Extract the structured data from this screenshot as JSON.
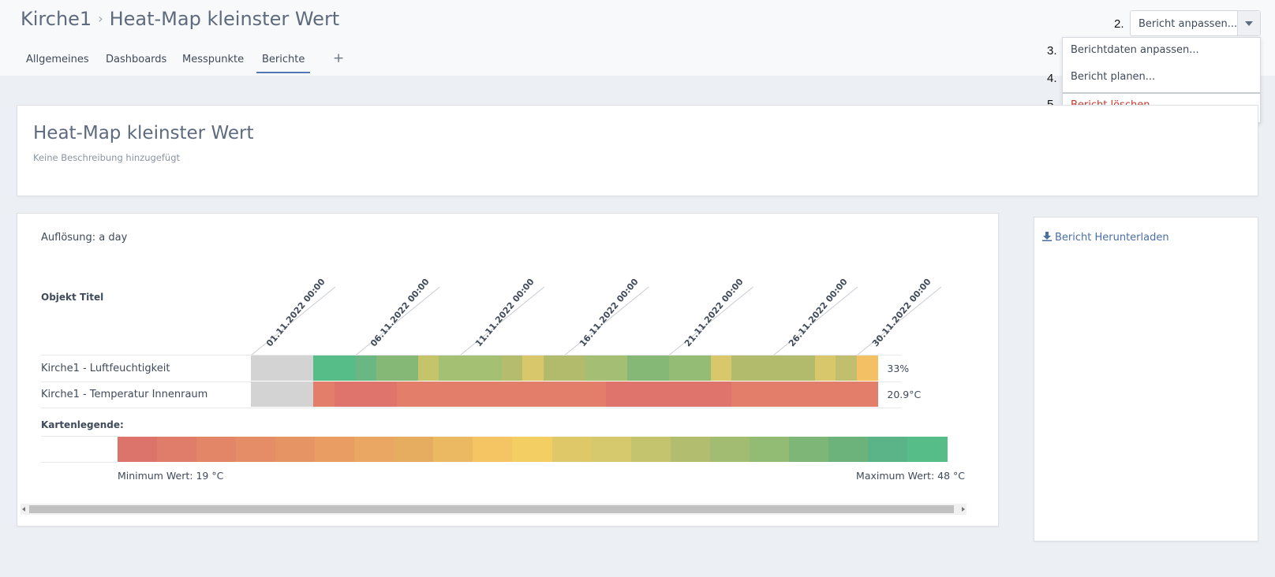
{
  "breadcrumb": {
    "parent": "Kirche1",
    "current": "Heat-Map kleinster Wert"
  },
  "tabs": [
    {
      "label": "Allgemeines"
    },
    {
      "label": "Dashboards"
    },
    {
      "label": "Messpunkte"
    },
    {
      "label": "Berichte",
      "active": true
    }
  ],
  "steps": {
    "s2": "2.",
    "s3": "3.",
    "s4": "4.",
    "s5": "5."
  },
  "report_menu": {
    "button_label": "Bericht anpassen...",
    "items": [
      "Berichtdaten anpassen...",
      "Bericht planen...",
      "Bericht löschen..."
    ]
  },
  "report": {
    "title": "Heat-Map kleinster Wert",
    "description": "Keine Beschreibung hinzugefügt"
  },
  "heatmap": {
    "resolution": "Auflösung: a day",
    "object_title_header": "Objekt Titel",
    "date_labels": [
      "01.11.2022 00:00",
      "06.11.2022 00:00",
      "11.11.2022 00:00",
      "16.11.2022 00:00",
      "21.11.2022 00:00",
      "26.11.2022 00:00",
      "30.11.2022 00:00"
    ],
    "rows": [
      {
        "name": "Kirche1 - Luftfeuchtigkeit",
        "value": "33%",
        "cells": [
          "#d3d3d3",
          "#d3d3d3",
          "#d3d3d3",
          "#56bd89",
          "#56bd89",
          "#6ab784",
          "#85b877",
          "#85b877",
          "#c6c46b",
          "#a3c073",
          "#a3c073",
          "#a3c073",
          "#b5bc6c",
          "#d8c76b",
          "#b2bb6c",
          "#b2bb6c",
          "#a4be73",
          "#a4be73",
          "#85b877",
          "#85b877",
          "#95bc74",
          "#95bc74",
          "#d8c76b",
          "#b2bb6c",
          "#b2bb6c",
          "#b2bb6c",
          "#b2bb6c",
          "#d8c76b",
          "#c1bf6d",
          "#f3c164"
        ]
      },
      {
        "name": "Kirche1 - Temperatur Innenraum",
        "value": "20.9°C",
        "cells": [
          "#d3d3d3",
          "#d3d3d3",
          "#d3d3d3",
          "#e27e6a",
          "#de746b",
          "#de746b",
          "#de746b",
          "#e27e6a",
          "#e27e6a",
          "#e27e6a",
          "#e27e6a",
          "#e27e6a",
          "#e27e6a",
          "#e27e6a",
          "#e27e6a",
          "#e27e6a",
          "#e27e6a",
          "#de746b",
          "#de746b",
          "#de746b",
          "#de746b",
          "#de746b",
          "#de746b",
          "#e27e6a",
          "#e27e6a",
          "#e27e6a",
          "#e27e6a",
          "#e27e6a",
          "#e27e6a",
          "#e27e6a"
        ]
      }
    ],
    "legend": {
      "title": "Kartenlegende:",
      "min_label": "Minimum Wert: 19 °C",
      "max_label": "Maximum Wert: 48 °C",
      "colors": [
        "#dc746b",
        "#e07d6a",
        "#e38667",
        "#e58d66",
        "#e79464",
        "#e99d63",
        "#eaa663",
        "#e6ad60",
        "#ecb963",
        "#f5c564",
        "#f3ce63",
        "#dfc868",
        "#d5c86d",
        "#c4c46e",
        "#b3bd6f",
        "#a2bd72",
        "#92bb74",
        "#7eb677",
        "#6bb37b",
        "#5ab487",
        "#56bd89"
      ]
    }
  },
  "download_label": "Bericht Herunterladen"
}
